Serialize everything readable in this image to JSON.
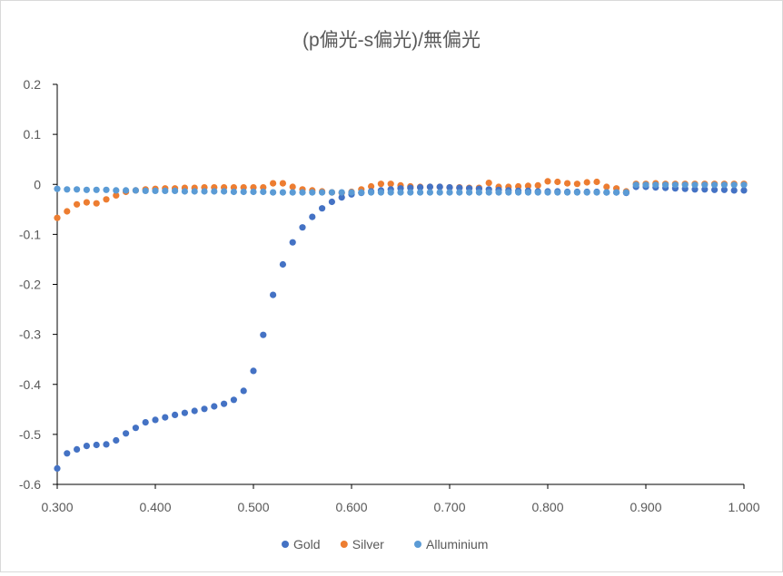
{
  "chart_data": {
    "type": "scatter",
    "title": "(p偏光-s偏光)/無偏光",
    "xlabel": "",
    "ylabel": "",
    "xlim": [
      0.3,
      1.0
    ],
    "ylim": [
      -0.6,
      0.2
    ],
    "x_ticks": [
      "0.300",
      "0.400",
      "0.500",
      "0.600",
      "0.700",
      "0.800",
      "0.900",
      "1.000"
    ],
    "y_ticks": [
      "0.2",
      "0.1",
      "0",
      "-0.1",
      "-0.2",
      "-0.3",
      "-0.4",
      "-0.5",
      "-0.6"
    ],
    "grid": false,
    "legend_position": "bottom",
    "x": [
      0.3,
      0.31,
      0.32,
      0.33,
      0.34,
      0.35,
      0.36,
      0.37,
      0.38,
      0.39,
      0.4,
      0.41,
      0.42,
      0.43,
      0.44,
      0.45,
      0.46,
      0.47,
      0.48,
      0.49,
      0.5,
      0.51,
      0.52,
      0.53,
      0.54,
      0.55,
      0.56,
      0.57,
      0.58,
      0.59,
      0.6,
      0.61,
      0.62,
      0.63,
      0.64,
      0.65,
      0.66,
      0.67,
      0.68,
      0.69,
      0.7,
      0.71,
      0.72,
      0.73,
      0.74,
      0.75,
      0.76,
      0.77,
      0.78,
      0.79,
      0.8,
      0.81,
      0.82,
      0.83,
      0.84,
      0.85,
      0.86,
      0.87,
      0.88,
      0.89,
      0.9,
      0.91,
      0.92,
      0.93,
      0.94,
      0.95,
      0.96,
      0.97,
      0.98,
      0.99,
      1.0
    ],
    "series": [
      {
        "name": "Gold",
        "color": "#4472c4",
        "values": [
          -0.568,
          -0.538,
          -0.53,
          -0.523,
          -0.521,
          -0.52,
          -0.512,
          -0.498,
          -0.487,
          -0.476,
          -0.471,
          -0.466,
          -0.461,
          -0.457,
          -0.453,
          -0.449,
          -0.444,
          -0.439,
          -0.431,
          -0.413,
          -0.373,
          -0.301,
          -0.221,
          -0.16,
          -0.116,
          -0.086,
          -0.065,
          -0.048,
          -0.035,
          -0.026,
          -0.02,
          -0.017,
          -0.014,
          -0.012,
          -0.01,
          -0.008,
          -0.007,
          -0.006,
          -0.005,
          -0.005,
          -0.006,
          -0.007,
          -0.008,
          -0.009,
          -0.01,
          -0.011,
          -0.012,
          -0.013,
          -0.013,
          -0.014,
          -0.014,
          -0.014,
          -0.015,
          -0.015,
          -0.015,
          -0.015,
          -0.016,
          -0.016,
          -0.017,
          -0.005,
          -0.005,
          -0.006,
          -0.007,
          -0.008,
          -0.009,
          -0.01,
          -0.01,
          -0.011,
          -0.011,
          -0.012,
          -0.012
        ]
      },
      {
        "name": "Silver",
        "color": "#ed7d31",
        "values": [
          -0.067,
          -0.054,
          -0.04,
          -0.036,
          -0.038,
          -0.03,
          -0.022,
          -0.015,
          -0.012,
          -0.01,
          -0.009,
          -0.008,
          -0.008,
          -0.007,
          -0.007,
          -0.006,
          -0.006,
          -0.006,
          -0.006,
          -0.006,
          -0.006,
          -0.006,
          0.002,
          0.002,
          -0.005,
          -0.01,
          -0.012,
          -0.014,
          -0.016,
          -0.017,
          -0.015,
          -0.01,
          -0.004,
          0.001,
          0.001,
          -0.002,
          -0.004,
          -0.005,
          -0.005,
          -0.005,
          -0.006,
          -0.006,
          -0.007,
          -0.007,
          0.003,
          -0.005,
          -0.005,
          -0.004,
          -0.003,
          -0.002,
          0.006,
          0.005,
          0.002,
          0.001,
          0.004,
          0.005,
          -0.005,
          -0.008,
          -0.014,
          0.001,
          0.001,
          0.002,
          0.001,
          0.001,
          0.001,
          0.001,
          0.001,
          0.001,
          0.001,
          0.001,
          0.001
        ]
      },
      {
        "name": "Alluminium",
        "color": "#5b9bd5",
        "values": [
          -0.009,
          -0.01,
          -0.01,
          -0.011,
          -0.011,
          -0.011,
          -0.012,
          -0.012,
          -0.012,
          -0.013,
          -0.013,
          -0.013,
          -0.013,
          -0.014,
          -0.014,
          -0.014,
          -0.014,
          -0.014,
          -0.015,
          -0.015,
          -0.015,
          -0.015,
          -0.016,
          -0.016,
          -0.016,
          -0.016,
          -0.016,
          -0.016,
          -0.016,
          -0.016,
          -0.016,
          -0.016,
          -0.016,
          -0.016,
          -0.016,
          -0.016,
          -0.016,
          -0.016,
          -0.016,
          -0.016,
          -0.016,
          -0.016,
          -0.016,
          -0.016,
          -0.016,
          -0.016,
          -0.016,
          -0.016,
          -0.016,
          -0.016,
          -0.016,
          -0.016,
          -0.016,
          -0.016,
          -0.016,
          -0.016,
          -0.016,
          -0.016,
          -0.016,
          -0.001,
          -0.001,
          -0.001,
          -0.001,
          -0.001,
          -0.001,
          -0.001,
          -0.001,
          -0.001,
          -0.001,
          -0.001,
          -0.001
        ]
      }
    ]
  }
}
